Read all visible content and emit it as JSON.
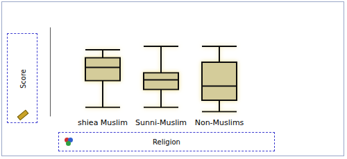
{
  "chart_data": {
    "type": "boxplot",
    "categories": [
      "shiea Muslim",
      "Sunni-Muslim",
      "Non-Muslims"
    ],
    "values": [
      [
        10,
        40,
        55,
        66,
        75
      ],
      [
        10,
        30,
        41,
        49,
        79
      ],
      [
        5,
        18,
        34,
        61,
        79
      ]
    ],
    "x_label": "Religion",
    "y_label": "Score",
    "color": "#d4cc9a",
    "ylim": [
      0,
      100
    ],
    "yticks": [],
    "grid": false,
    "tick_labels": "x"
  }
}
